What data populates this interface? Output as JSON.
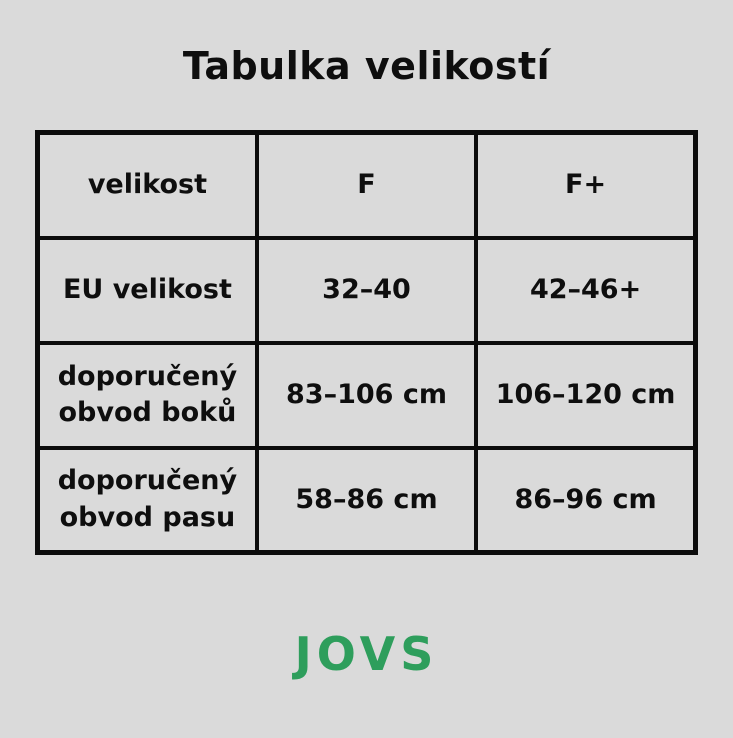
{
  "page": {
    "title": "Tabulka velikostí",
    "background_color": "#dadada",
    "text_color": "#0e0e0e",
    "border_color": "#0c0c0c"
  },
  "table": {
    "header": [
      "velikost",
      "F",
      "F+"
    ],
    "rows": [
      [
        "EU velikost",
        "32–40",
        "42–46+"
      ],
      [
        "doporučený obvod boků",
        "83–106 cm",
        "106–120 cm"
      ],
      [
        "doporučený obvod pasu",
        "58–86 cm",
        "86–96 cm"
      ]
    ]
  },
  "footer": {
    "brand": "JOVS",
    "brand_color": "#2e9e5c"
  }
}
